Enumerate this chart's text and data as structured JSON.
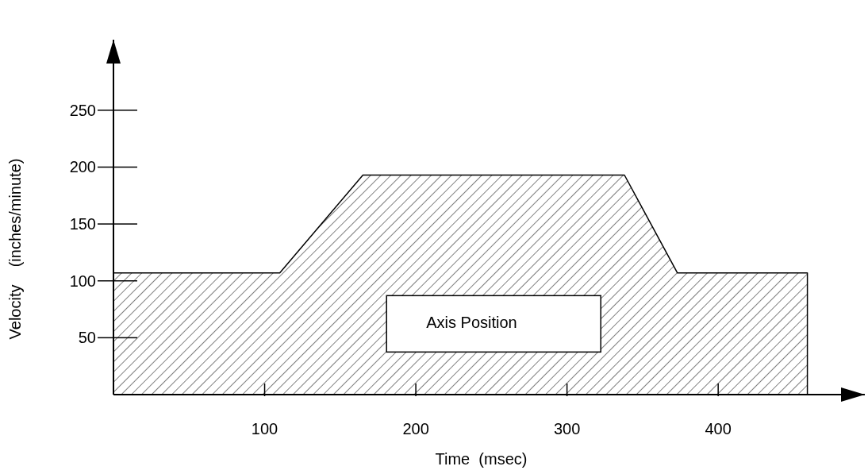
{
  "chart_data": {
    "type": "area",
    "xlabel": "Time  (msec)",
    "ylabel": "Velocity    (inches/minute)",
    "x": [
      0,
      110,
      165,
      338,
      373,
      459
    ],
    "values": [
      107,
      107,
      193,
      193,
      107,
      107
    ],
    "color": "#000000",
    "xlim": [
      0,
      497
    ],
    "ylim": [
      0,
      312
    ],
    "xticks": [
      100,
      200,
      300,
      400
    ],
    "yticks": [
      50,
      100,
      150,
      200,
      250
    ],
    "annotations": [
      "Axis Position"
    ],
    "grid": false
  }
}
